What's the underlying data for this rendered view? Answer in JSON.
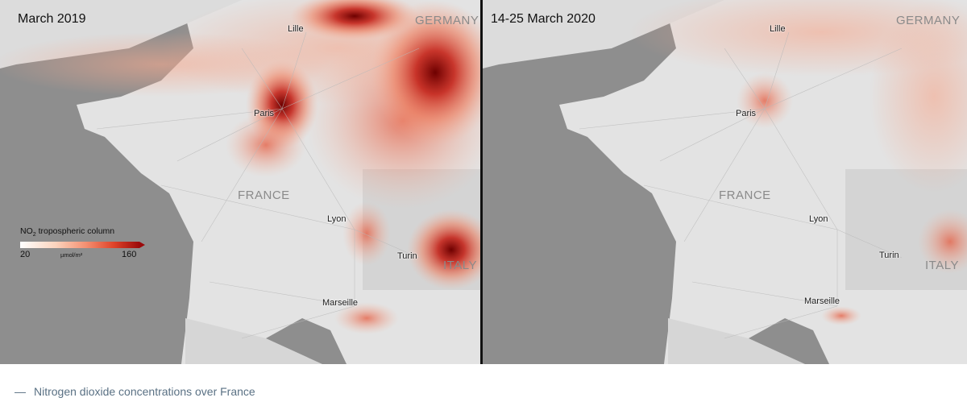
{
  "left_panel": {
    "title": "March 2019",
    "cities": {
      "lille": "Lille",
      "paris": "Paris",
      "lyon": "Lyon",
      "turin": "Turin",
      "marseille": "Marseille"
    },
    "countries": {
      "france": "FRANCE",
      "germany": "GERMANY",
      "italy": "ITALY"
    }
  },
  "right_panel": {
    "title": "14-25 March 2020",
    "cities": {
      "lille": "Lille",
      "paris": "Paris",
      "lyon": "Lyon",
      "turin": "Turin",
      "marseille": "Marseille"
    },
    "countries": {
      "france": "FRANCE",
      "germany": "GERMANY",
      "italy": "ITALY"
    }
  },
  "legend": {
    "title_prefix": "NO",
    "title_sub": "2",
    "title_suffix": " tropospheric column",
    "min": "20",
    "max": "160",
    "unit": "µmol/m²",
    "colors": [
      "#ffffff",
      "#fbd3bd",
      "#f49072",
      "#e0452b",
      "#9b0a0b"
    ]
  },
  "caption": {
    "dash": "—",
    "text": "Nitrogen dioxide concentrations over France"
  },
  "colors": {
    "sea": "#8e8e8e",
    "land": "#e3e3e3",
    "divider": "#111111",
    "caption": "#5a7184"
  }
}
